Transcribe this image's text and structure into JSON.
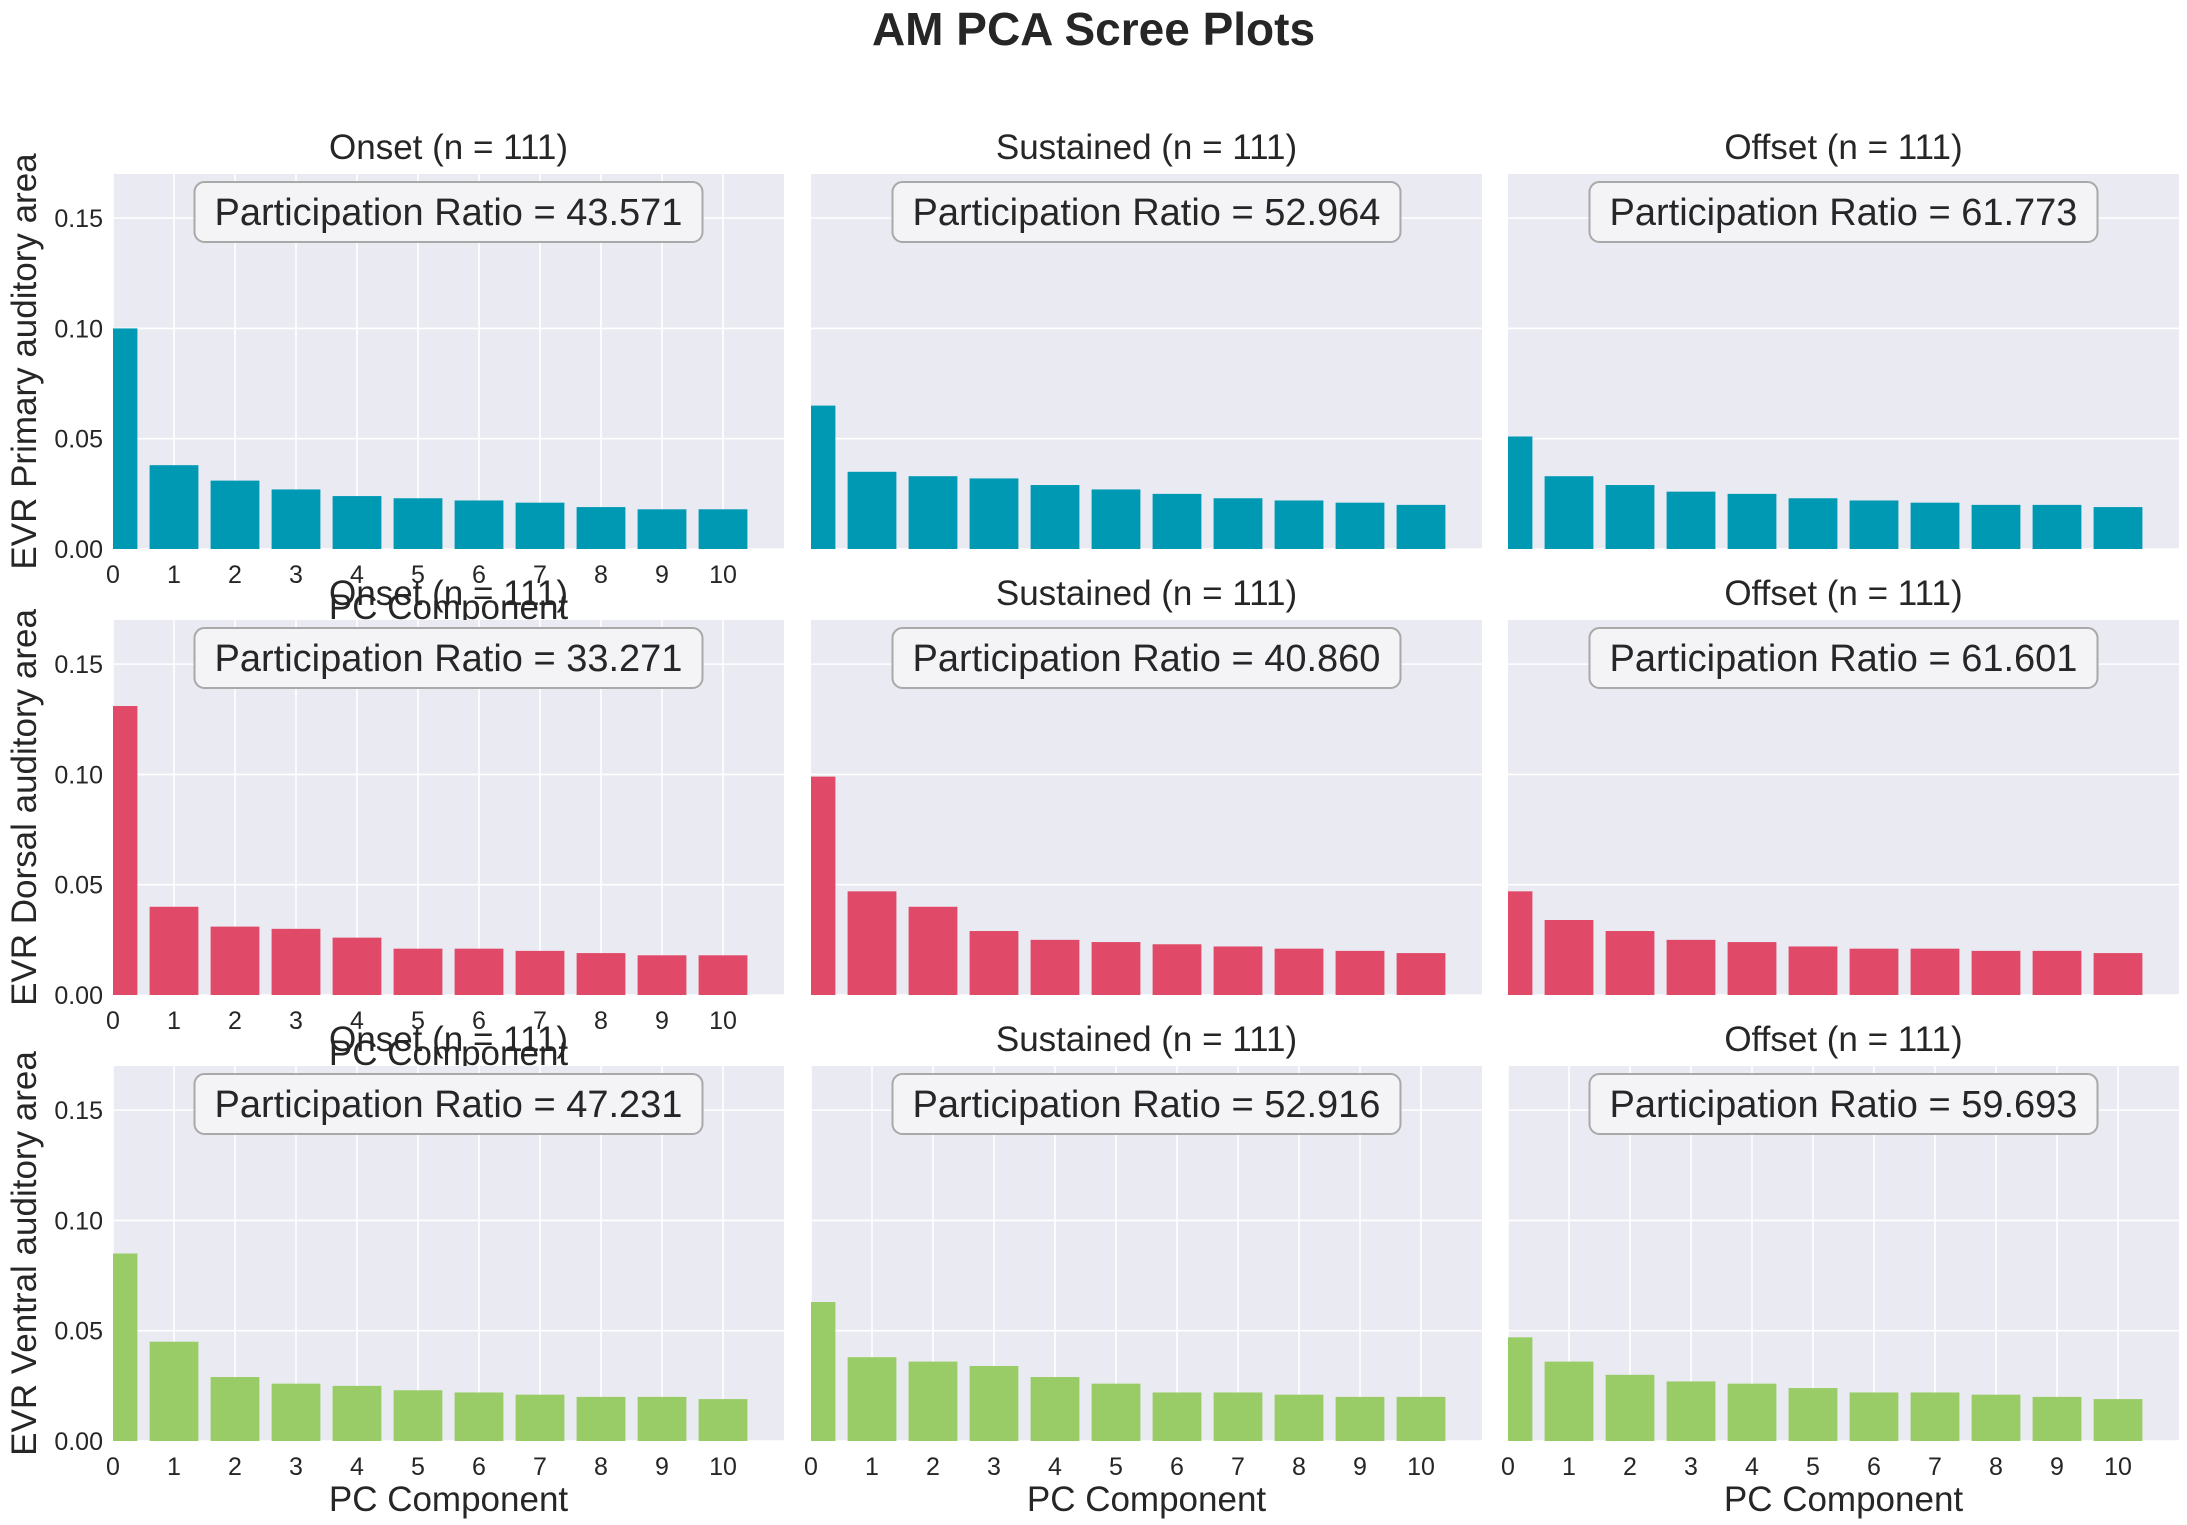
{
  "figure": {
    "title": "AM PCA Scree Plots",
    "xlabel": "PC Component"
  },
  "chart_data": [
    {
      "type": "bar",
      "row": 0,
      "col": 0,
      "title": "Onset (n = 111)",
      "ylabel": "EVR Primary auditory area",
      "annotation": "Participation Ratio = 43.571",
      "color": "#0099b3",
      "x": [
        0,
        1,
        2,
        3,
        4,
        5,
        6,
        7,
        8,
        9,
        10
      ],
      "values": [
        0.1,
        0.038,
        0.031,
        0.027,
        0.024,
        0.023,
        0.022,
        0.021,
        0.019,
        0.018,
        0.018
      ],
      "ylim": [
        0,
        0.17
      ],
      "yticks": [
        "0.00",
        "0.05",
        "0.10",
        "0.15"
      ],
      "xticks": [
        "0",
        "1",
        "2",
        "3",
        "4",
        "5",
        "6",
        "7",
        "8",
        "9",
        "10"
      ],
      "xlim": [
        0,
        11
      ],
      "grid": true
    },
    {
      "type": "bar",
      "row": 0,
      "col": 1,
      "title": "Sustained (n = 111)",
      "ylabel": "",
      "annotation": "Participation Ratio = 52.964",
      "color": "#0099b3",
      "x": [
        0,
        1,
        2,
        3,
        4,
        5,
        6,
        7,
        8,
        9,
        10
      ],
      "values": [
        0.065,
        0.035,
        0.033,
        0.032,
        0.029,
        0.027,
        0.025,
        0.023,
        0.022,
        0.021,
        0.02
      ],
      "ylim": [
        0,
        0.17
      ],
      "xlim": [
        0,
        11
      ],
      "grid": true
    },
    {
      "type": "bar",
      "row": 0,
      "col": 2,
      "title": "Offset (n = 111)",
      "ylabel": "",
      "annotation": "Participation Ratio = 61.773",
      "color": "#0099b3",
      "x": [
        0,
        1,
        2,
        3,
        4,
        5,
        6,
        7,
        8,
        9,
        10
      ],
      "values": [
        0.051,
        0.033,
        0.029,
        0.026,
        0.025,
        0.023,
        0.022,
        0.021,
        0.02,
        0.02,
        0.019
      ],
      "ylim": [
        0,
        0.17
      ],
      "xlim": [
        0,
        11
      ],
      "grid": true
    },
    {
      "type": "bar",
      "row": 1,
      "col": 0,
      "title": "Onset (n = 111)",
      "ylabel": "EVR Dorsal auditory area",
      "annotation": "Participation Ratio = 33.271",
      "color": "#e04a68",
      "x": [
        0,
        1,
        2,
        3,
        4,
        5,
        6,
        7,
        8,
        9,
        10
      ],
      "values": [
        0.131,
        0.04,
        0.031,
        0.03,
        0.026,
        0.021,
        0.021,
        0.02,
        0.019,
        0.018,
        0.018
      ],
      "ylim": [
        0,
        0.17
      ],
      "yticks": [
        "0.00",
        "0.05",
        "0.10",
        "0.15"
      ],
      "xticks": [
        "0",
        "1",
        "2",
        "3",
        "4",
        "5",
        "6",
        "7",
        "8",
        "9",
        "10"
      ],
      "xlim": [
        0,
        11
      ],
      "grid": true
    },
    {
      "type": "bar",
      "row": 1,
      "col": 1,
      "title": "Sustained (n = 111)",
      "ylabel": "",
      "annotation": "Participation Ratio = 40.860",
      "color": "#e04a68",
      "x": [
        0,
        1,
        2,
        3,
        4,
        5,
        6,
        7,
        8,
        9,
        10
      ],
      "values": [
        0.099,
        0.047,
        0.04,
        0.029,
        0.025,
        0.024,
        0.023,
        0.022,
        0.021,
        0.02,
        0.019
      ],
      "ylim": [
        0,
        0.17
      ],
      "xlim": [
        0,
        11
      ],
      "grid": true
    },
    {
      "type": "bar",
      "row": 1,
      "col": 2,
      "title": "Offset (n = 111)",
      "ylabel": "",
      "annotation": "Participation Ratio = 61.601",
      "color": "#e04a68",
      "x": [
        0,
        1,
        2,
        3,
        4,
        5,
        6,
        7,
        8,
        9,
        10
      ],
      "values": [
        0.047,
        0.034,
        0.029,
        0.025,
        0.024,
        0.022,
        0.021,
        0.021,
        0.02,
        0.02,
        0.019
      ],
      "ylim": [
        0,
        0.17
      ],
      "xlim": [
        0,
        11
      ],
      "grid": true
    },
    {
      "type": "bar",
      "row": 2,
      "col": 0,
      "title": "Onset (n = 111)",
      "ylabel": "EVR Ventral auditory area",
      "annotation": "Participation Ratio = 47.231",
      "color": "#99cc66",
      "x": [
        0,
        1,
        2,
        3,
        4,
        5,
        6,
        7,
        8,
        9,
        10
      ],
      "values": [
        0.085,
        0.045,
        0.029,
        0.026,
        0.025,
        0.023,
        0.022,
        0.021,
        0.02,
        0.02,
        0.019
      ],
      "ylim": [
        0,
        0.17
      ],
      "yticks": [
        "0.00",
        "0.05",
        "0.10",
        "0.15"
      ],
      "xticks": [
        "0",
        "1",
        "2",
        "3",
        "4",
        "5",
        "6",
        "7",
        "8",
        "9",
        "10"
      ],
      "xlim": [
        0,
        11
      ],
      "grid": true
    },
    {
      "type": "bar",
      "row": 2,
      "col": 1,
      "title": "Sustained (n = 111)",
      "ylabel": "",
      "annotation": "Participation Ratio = 52.916",
      "color": "#99cc66",
      "x": [
        0,
        1,
        2,
        3,
        4,
        5,
        6,
        7,
        8,
        9,
        10
      ],
      "values": [
        0.063,
        0.038,
        0.036,
        0.034,
        0.029,
        0.026,
        0.022,
        0.022,
        0.021,
        0.02,
        0.02
      ],
      "ylim": [
        0,
        0.17
      ],
      "xticks": [
        "0",
        "1",
        "2",
        "3",
        "4",
        "5",
        "6",
        "7",
        "8",
        "9",
        "10"
      ],
      "xlim": [
        0,
        11
      ],
      "grid": true
    },
    {
      "type": "bar",
      "row": 2,
      "col": 2,
      "title": "Offset (n = 111)",
      "ylabel": "",
      "annotation": "Participation Ratio = 59.693",
      "color": "#99cc66",
      "x": [
        0,
        1,
        2,
        3,
        4,
        5,
        6,
        7,
        8,
        9,
        10
      ],
      "values": [
        0.047,
        0.036,
        0.03,
        0.027,
        0.026,
        0.024,
        0.022,
        0.022,
        0.021,
        0.02,
        0.019
      ],
      "ylim": [
        0,
        0.17
      ],
      "xticks": [
        "0",
        "1",
        "2",
        "3",
        "4",
        "5",
        "6",
        "7",
        "8",
        "9",
        "10"
      ],
      "xlim": [
        0,
        11
      ],
      "grid": true
    }
  ]
}
